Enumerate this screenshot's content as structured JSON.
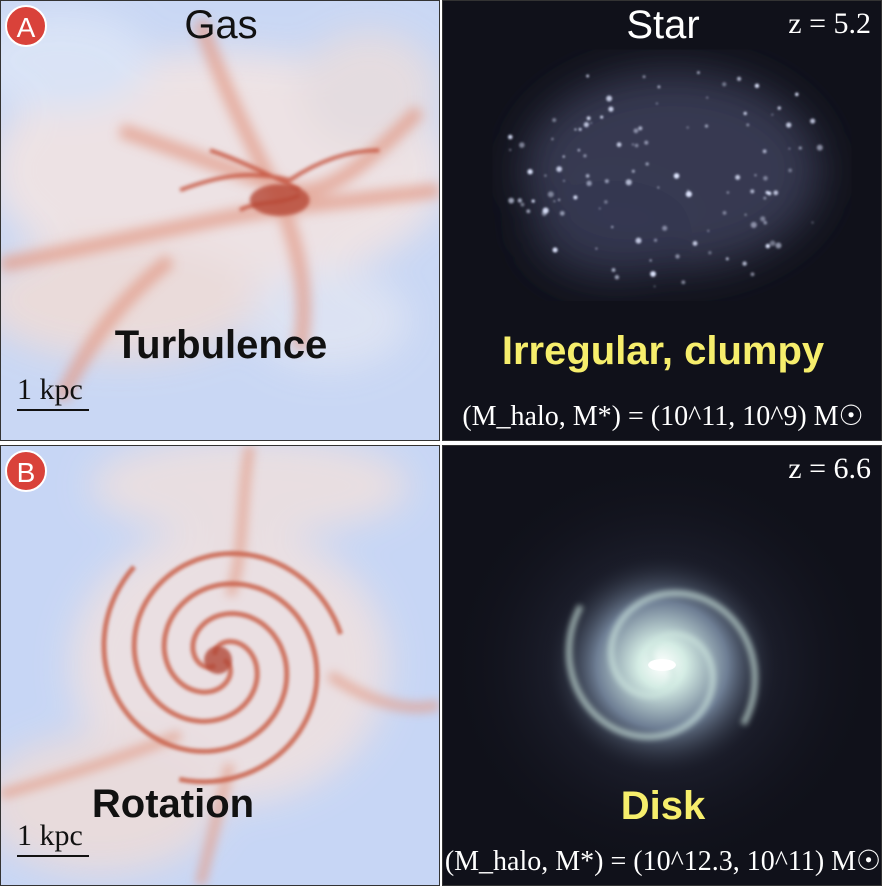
{
  "panels": [
    {
      "badge": "A",
      "gas_label": "Gas",
      "star_label": "Star",
      "redshift": "z = 5.2",
      "gas_regime": "Turbulence",
      "star_morphology": "Irregular, clumpy",
      "mass_text": "(M_halo, M*) = (10^11, 10^9) M☉",
      "mass_halo_exp": "11",
      "mass_star_exp": "9",
      "scale_label": "1 kpc"
    },
    {
      "badge": "B",
      "redshift": "z = 6.6",
      "gas_regime": "Rotation",
      "star_morphology": "Disk",
      "mass_text": "(M_halo, M*) = (10^12.3, 10^11) M☉",
      "mass_halo_exp": "12.3",
      "mass_star_exp": "11",
      "scale_label": "1 kpc"
    }
  ],
  "colors": {
    "gas_background": "#c8d6f5",
    "gas_structure": "#d9745c",
    "star_background": "#10111a",
    "star_glow": "#cfe6e0",
    "morphology_text": "#f6ee6c",
    "badge": "#d9423a"
  }
}
